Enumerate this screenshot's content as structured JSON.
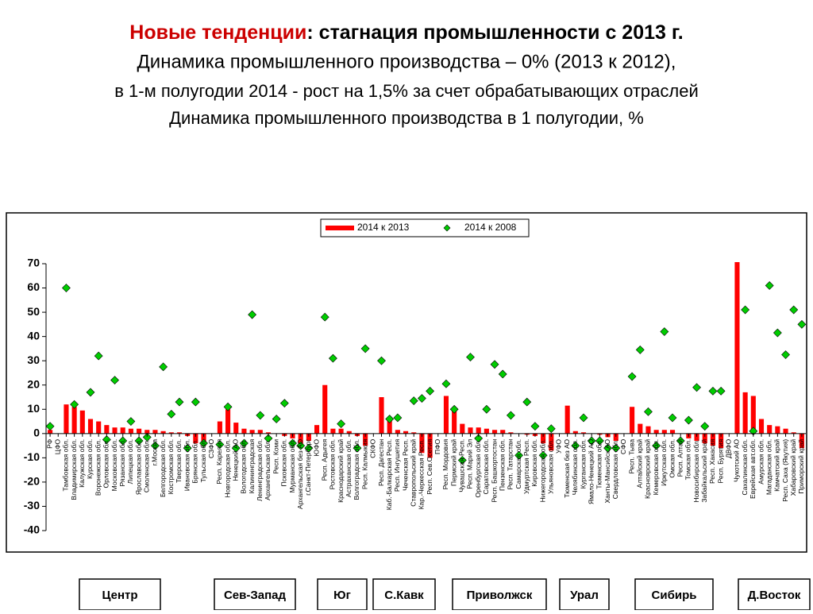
{
  "chart_data": {
    "type": "bar",
    "title_highlight": "Новые тенденции",
    "title": ": стагнация промышленности с 2013 г.",
    "subtitle_lines": [
      "Динамика промышленного производства – 0% (2013 к 2012),",
      "в 1-м полугодии 2014 - рост на 1,5% за счет обрабатывающих отраслей",
      "Динамика промышленного производства в 1 полугодии, %"
    ],
    "categories": [
      "РФ",
      "ЦФО",
      "Тамбовская обл.",
      "Владимирская обл.",
      "Калужская обл.",
      "Курская обл.",
      "Воронежская обл.",
      "Орловская обл.",
      "Московская обл.",
      "Рязанская обл.",
      "Липецкая обл.",
      "Ярославская обл.",
      "Смоленская обл.",
      "г.Москва",
      "Белгородская обл.",
      "Костромская обл.",
      "Тверская обл.",
      "Ивановская обл.",
      "Брянская обл.",
      "Тульская обл.",
      "СЗФО",
      "Респ. Карелия",
      "Новгородская обл.",
      "Ненецкий АО",
      "Вологодская обл.",
      "Калининградская",
      "Ленинградская обл.",
      "Архангельская обл.",
      "Респ. Коми",
      "Псковская обл.",
      "Мурманская обл.",
      "Архангельская без АО",
      "г.Санкт-Петербург",
      "ЮФО",
      "Респ. Адыгея",
      "Ростовская обл.",
      "Краснодарский край",
      "Астраханская обл.",
      "Волгоградская обл.",
      "Респ. Калмыкия",
      "СКФО",
      "Респ. Дагестан",
      "Каб.-Балкарская Респ.",
      "Респ. Ингушетия",
      "Чеченская Респ.",
      "Ставропольский край",
      "Кар.-Черкесская Респ.",
      "Респ. Сев.Осетия",
      "ПФО",
      "Респ. Мордовия",
      "Пермский край",
      "Чувашская Респ.",
      "Респ. Марий Эл",
      "Оренбургская обл.",
      "Саратовская обл.",
      "Респ. Башкортостан",
      "Пензенская обл.",
      "Респ. Татарстан",
      "Самарская обл.",
      "Удмуртская Респ.",
      "Кировская обл.",
      "Нижегородская обл.",
      "Ульяновская обл.",
      "УФО",
      "Тюменская без АО",
      "Челябинская обл.",
      "Курганская обл.",
      "Ямало-Ненецкий АО",
      "Тюменская обл.",
      "Ханты-Мансийск.АО",
      "Свердловская обл.",
      "СФО",
      "Респ. Тыва",
      "Алтайский край",
      "Красноярский край",
      "Кемеровская обл.",
      "Иркутская обл.",
      "Омская обл.",
      "Респ. Алтай",
      "Томская обл.",
      "Новосибирская обл.",
      "Забайкальский край",
      "Респ. Хакасия",
      "Респ. Бурятия",
      "ДВФО",
      "Чукотский АО",
      "Сахалинская обл.",
      "Еврейская авт.обл.",
      "Амурская обл.",
      "Магаданская обл.",
      "Камчатский край",
      "Респ. Саха (Якутия)",
      "Хабаровский край",
      "Приморский край"
    ],
    "series": [
      {
        "name": "2014 к 2013",
        "kind": "bar",
        "color": "#ff0000",
        "values": [
          1.5,
          0,
          12,
          11,
          9.5,
          6,
          5,
          3.5,
          2.5,
          2.5,
          2,
          2,
          1.5,
          1.5,
          1,
          0.5,
          0.5,
          -1,
          -4,
          -5,
          0,
          5,
          10,
          4.5,
          2,
          1.5,
          1.5,
          0.5,
          0,
          -1,
          -2,
          -6,
          -3,
          3.5,
          20,
          2,
          2,
          1,
          -1,
          -5,
          0,
          15,
          6,
          1.5,
          1,
          0.5,
          -8,
          -10,
          0,
          15.5,
          10,
          4,
          2.5,
          2.5,
          2,
          1.5,
          1.5,
          0.5,
          0,
          -0.5,
          -1,
          -4,
          -7,
          0,
          11.5,
          1,
          0.5,
          0,
          -0.5,
          -1.5,
          -3,
          0,
          11,
          4,
          3,
          1.5,
          1.5,
          1.5,
          0,
          -2,
          -3,
          -4,
          -5,
          -6,
          0,
          71,
          17,
          15.5,
          6,
          3.5,
          3,
          2,
          0.5,
          -6
        ]
      },
      {
        "name": "2014 к 2008",
        "kind": "diamond",
        "color": "#00cc00",
        "values": [
          3,
          null,
          60,
          12,
          null,
          17,
          32,
          -2.5,
          22,
          -3,
          5,
          -3,
          -1.5,
          -5,
          27.5,
          8,
          13,
          -6,
          13,
          -4,
          null,
          -4.5,
          11,
          -6,
          -4,
          49,
          7.5,
          -2,
          6,
          12.5,
          -4,
          -5,
          -6,
          null,
          48,
          31,
          4,
          null,
          -6,
          35,
          null,
          30,
          6,
          6.5,
          null,
          13.5,
          14.5,
          17.5,
          null,
          20.5,
          10,
          -11,
          31.5,
          -2,
          10,
          28.5,
          24.5,
          7.5,
          -9,
          13,
          3,
          -9,
          2,
          null,
          null,
          -5,
          6.5,
          -3,
          -3,
          -6,
          -6,
          null,
          23.5,
          34.5,
          9,
          -5,
          42,
          6.5,
          -3,
          5.5,
          19,
          3,
          17.5,
          17.5,
          null,
          null,
          51,
          1,
          null,
          61,
          41.5,
          32.5,
          51,
          45
        ]
      }
    ],
    "ylim": [
      -40,
      70
    ],
    "yticks": [
      -40,
      -30,
      -20,
      -10,
      0,
      10,
      20,
      30,
      40,
      50,
      60,
      70
    ],
    "regions": [
      "Центр",
      "Сев-Запад",
      "Юг",
      "С.Кавк",
      "Приволжск",
      "Урал",
      "Сибирь",
      "Д.Восток"
    ]
  }
}
